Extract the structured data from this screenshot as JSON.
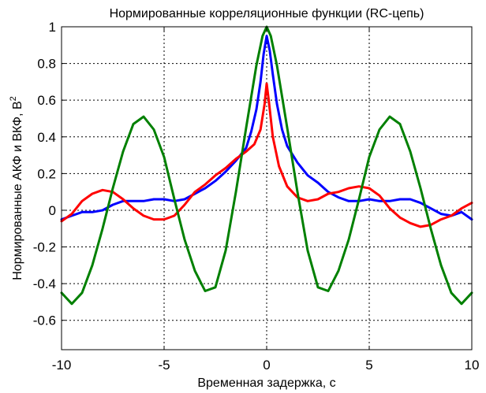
{
  "chart_data": {
    "type": "line",
    "title": "Нормированные корреляционные функции (RC-цепь)",
    "xlabel": "Временная задержка, с",
    "ylabel": "Нормированные АКФ и ВКФ, В",
    "ylabel_superscript": "2",
    "xlim": [
      -10,
      10
    ],
    "ylim": [
      -0.76,
      1.0
    ],
    "xticks": [
      -10,
      -5,
      0,
      5,
      10
    ],
    "yticks": [
      -0.6,
      -0.4,
      -0.2,
      0,
      0.2,
      0.4,
      0.6,
      0.8,
      1
    ],
    "xtick_labels": [
      "-10",
      "-5",
      "0",
      "5",
      "10"
    ],
    "ytick_labels": [
      "-0.6",
      "-0.4",
      "-0.2",
      "0",
      "0.2",
      "0.4",
      "0.6",
      "0.8",
      "1"
    ],
    "grid": true,
    "series": [
      {
        "color": "#0000ff",
        "x": [
          -10,
          -9.5,
          -9,
          -8.5,
          -8,
          -7.5,
          -7,
          -6.5,
          -6,
          -5.5,
          -5,
          -4.5,
          -4,
          -3.5,
          -3,
          -2.5,
          -2,
          -1.5,
          -1,
          -0.75,
          -0.5,
          -0.3,
          -0.15,
          0,
          0.15,
          0.3,
          0.5,
          0.75,
          1,
          1.5,
          2,
          2.5,
          3,
          3.5,
          4,
          4.5,
          5,
          5.5,
          6,
          6.5,
          7,
          7.5,
          8,
          8.5,
          9,
          9.5,
          10
        ],
        "y": [
          -0.05,
          -0.03,
          -0.01,
          -0.01,
          0.0,
          0.03,
          0.05,
          0.05,
          0.05,
          0.06,
          0.06,
          0.05,
          0.06,
          0.09,
          0.12,
          0.16,
          0.21,
          0.27,
          0.34,
          0.43,
          0.55,
          0.7,
          0.85,
          0.95,
          0.87,
          0.74,
          0.58,
          0.44,
          0.35,
          0.26,
          0.19,
          0.15,
          0.1,
          0.07,
          0.05,
          0.05,
          0.06,
          0.05,
          0.05,
          0.06,
          0.06,
          0.04,
          0.01,
          -0.02,
          -0.03,
          -0.01,
          -0.05
        ]
      },
      {
        "color": "#ff0000",
        "x": [
          -10,
          -9.5,
          -9,
          -8.5,
          -8,
          -7.5,
          -7,
          -6.5,
          -6,
          -5.5,
          -5,
          -4.5,
          -4,
          -3.5,
          -3,
          -2.5,
          -2,
          -1.5,
          -1,
          -0.6,
          -0.3,
          -0.1,
          0,
          0.1,
          0.3,
          0.6,
          1,
          1.5,
          2,
          2.5,
          3,
          3.5,
          4,
          4.5,
          5,
          5.5,
          6,
          6.5,
          7,
          7.5,
          8,
          8.5,
          9,
          9.5,
          10
        ],
        "y": [
          -0.06,
          -0.02,
          0.05,
          0.09,
          0.11,
          0.1,
          0.06,
          0.01,
          -0.03,
          -0.05,
          -0.05,
          -0.03,
          0.03,
          0.1,
          0.14,
          0.19,
          0.23,
          0.28,
          0.32,
          0.36,
          0.44,
          0.58,
          0.69,
          0.6,
          0.4,
          0.24,
          0.13,
          0.07,
          0.05,
          0.06,
          0.09,
          0.1,
          0.12,
          0.13,
          0.12,
          0.08,
          0.01,
          -0.04,
          -0.07,
          -0.09,
          -0.08,
          -0.05,
          -0.03,
          0.01,
          0.04
        ]
      },
      {
        "color": "#008000",
        "x": [
          -10,
          -9.5,
          -9,
          -8.5,
          -8,
          -7.5,
          -7,
          -6.5,
          -6,
          -5.5,
          -5,
          -4.5,
          -4,
          -3.5,
          -3,
          -2.5,
          -2,
          -1.5,
          -1,
          -0.5,
          -0.2,
          0,
          0.2,
          0.5,
          1,
          1.5,
          2,
          2.5,
          3,
          3.5,
          4,
          4.5,
          5,
          5.5,
          6,
          6.5,
          7,
          7.5,
          8,
          8.5,
          9,
          9.5,
          10
        ],
        "y": [
          -0.45,
          -0.51,
          -0.45,
          -0.3,
          -0.1,
          0.12,
          0.32,
          0.47,
          0.51,
          0.44,
          0.29,
          0.06,
          -0.16,
          -0.33,
          -0.44,
          -0.42,
          -0.22,
          0.1,
          0.45,
          0.79,
          0.95,
          1.0,
          0.95,
          0.79,
          0.45,
          0.1,
          -0.22,
          -0.42,
          -0.44,
          -0.33,
          -0.16,
          0.06,
          0.29,
          0.44,
          0.51,
          0.47,
          0.32,
          0.12,
          -0.1,
          -0.3,
          -0.45,
          -0.51,
          -0.45
        ]
      }
    ]
  }
}
